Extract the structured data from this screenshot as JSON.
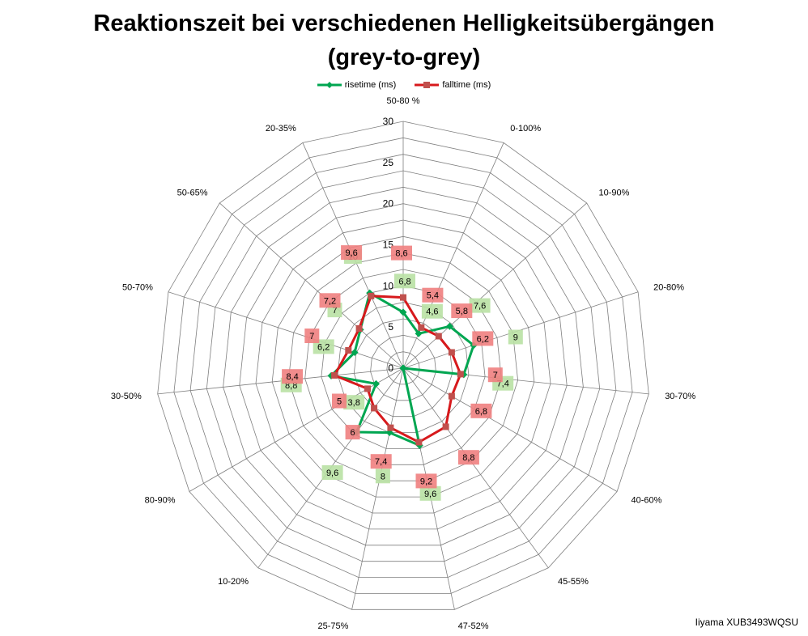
{
  "title_line1": "Reaktionszeit bei verschiedenen Helligkeitsübergängen",
  "title_line2": "(grey-to-grey)",
  "footer": "Iiyama XUB3493WQSU",
  "colors": {
    "rise": "#00a651",
    "fall": "#d7191c",
    "rise_label_bg": "#b9e1a4",
    "fall_label_bg": "#f08080"
  },
  "chart_data": {
    "type": "radar",
    "categories": [
      "50-80 %",
      "0-100%",
      "10-90%",
      "20-80%",
      "30-70%",
      "40-60%",
      "45-55%",
      "47-52%",
      "25-75%",
      "10-20%",
      "80-90%",
      "30-50%",
      "50-70%",
      "50-65%",
      "20-35%"
    ],
    "rlim": [
      0,
      30
    ],
    "ticks": [
      0,
      5,
      10,
      15,
      20,
      25,
      30
    ],
    "legend_position": "top",
    "series": [
      {
        "name": "risetime (ms)",
        "values": [
          "6,8",
          "4,6",
          "7,6",
          "9",
          "7,4",
          "",
          "",
          "9,6",
          "8",
          "9,6",
          "3,8",
          "8,8",
          "6,2",
          "7",
          "10"
        ]
      },
      {
        "name": "falltime (ms)",
        "values": [
          "8,6",
          "5,4",
          "5,8",
          "6,2",
          "7",
          "6,8",
          "8,8",
          "9,2",
          "7,4",
          "6",
          "5",
          "8,4",
          "7",
          "7,2",
          "9,6"
        ]
      }
    ]
  }
}
